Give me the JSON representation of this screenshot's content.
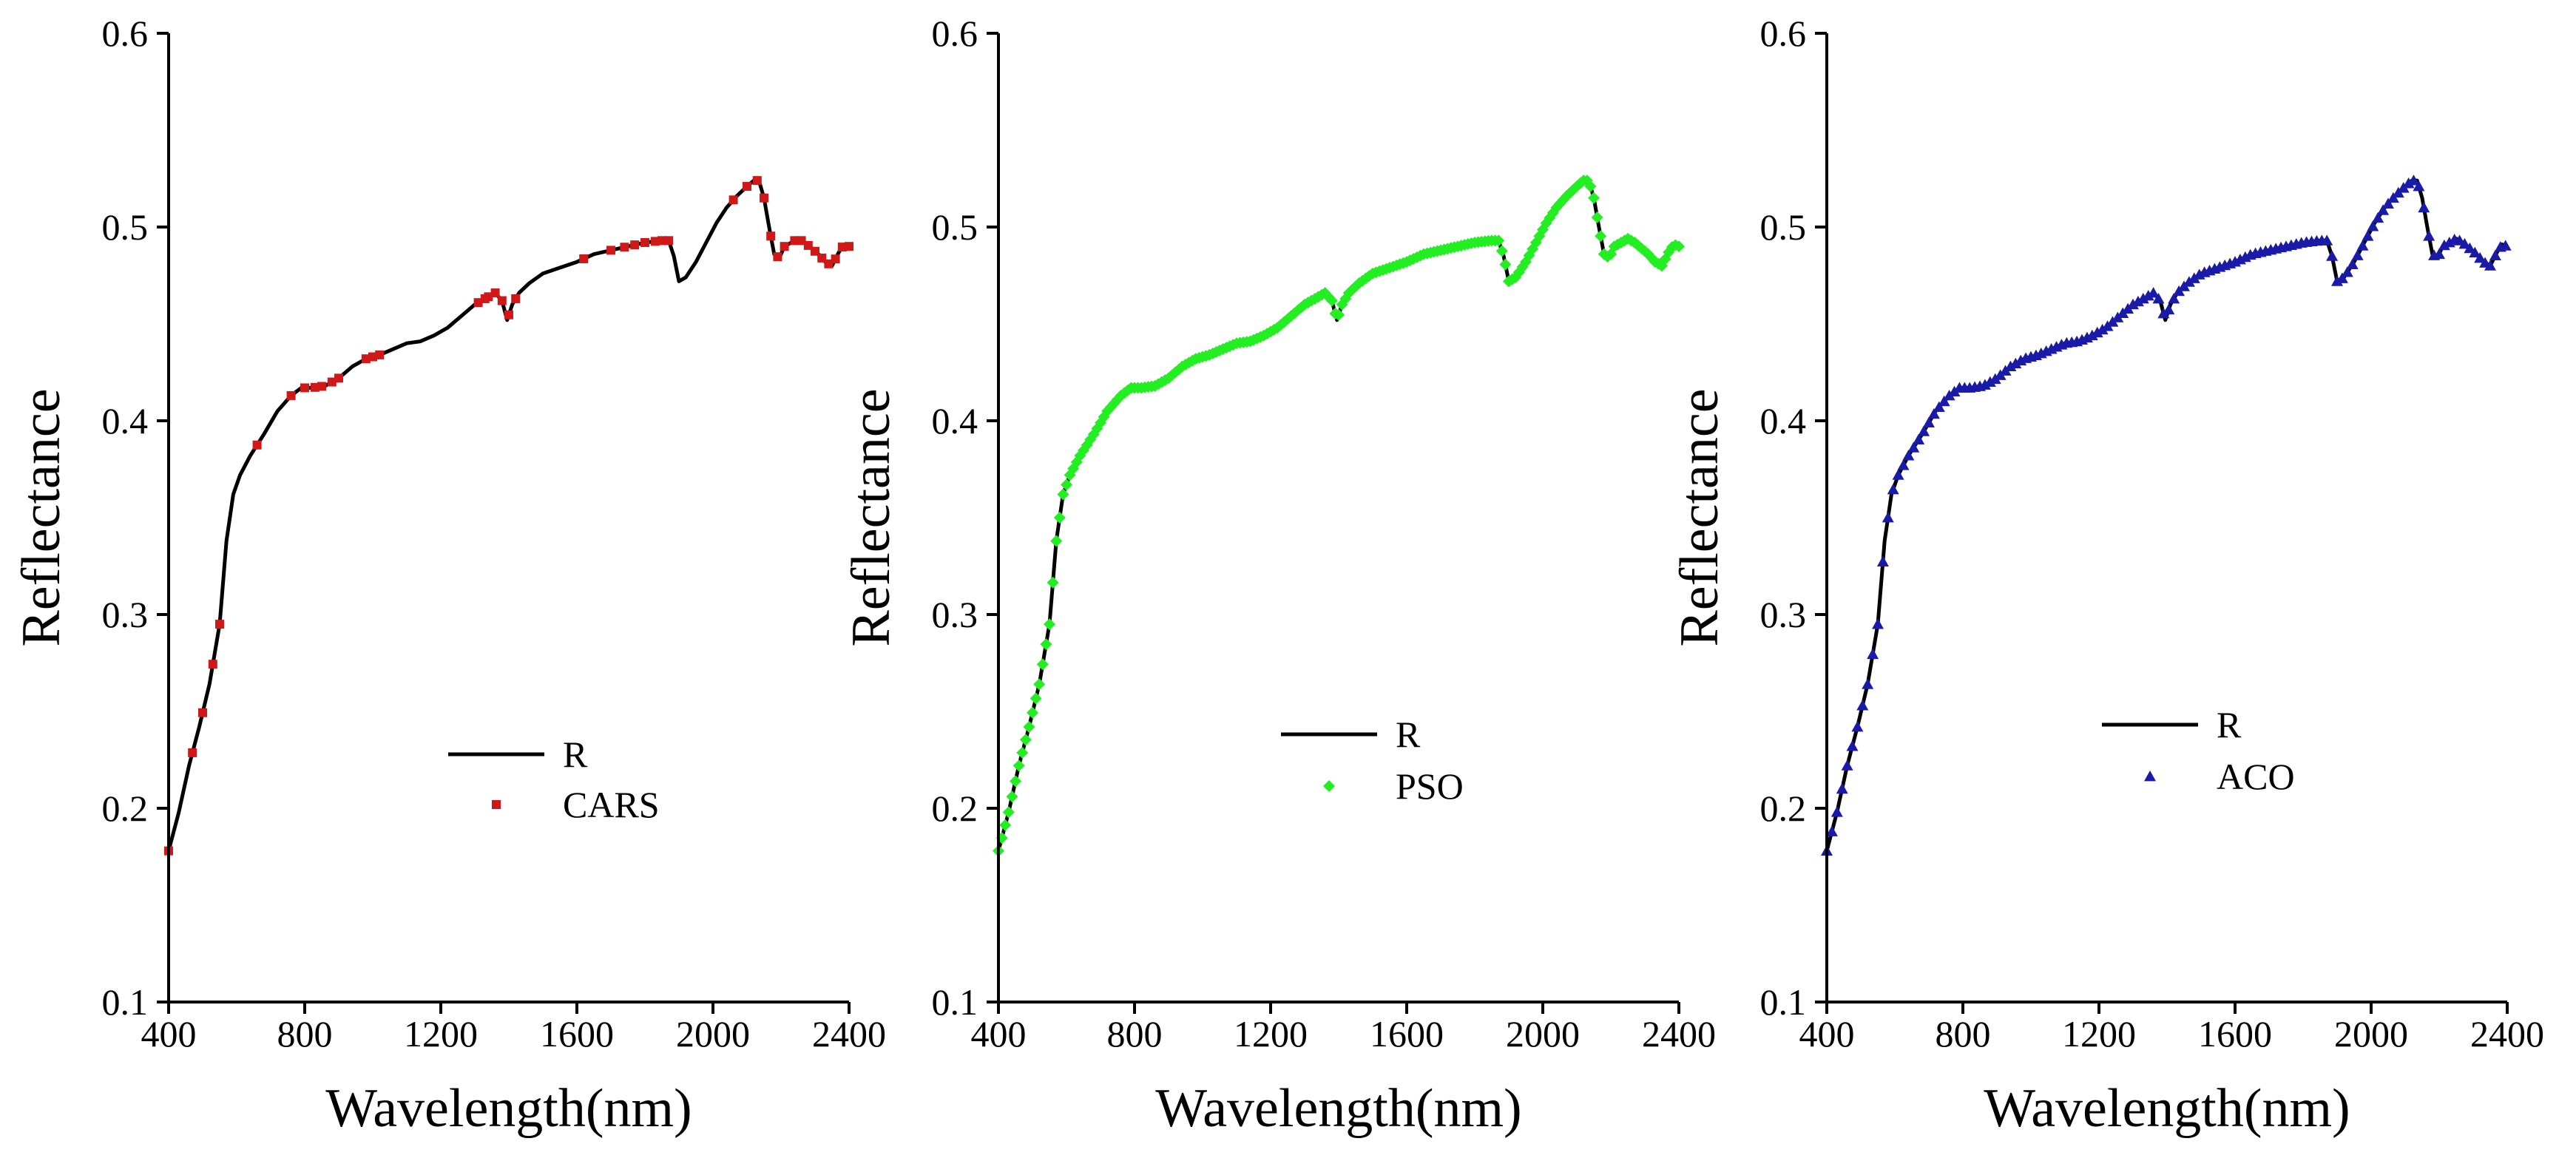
{
  "chart_data": [
    {
      "type": "line",
      "id": "cars",
      "xlabel": "Wavelength(nm)",
      "ylabel": "Reflectance",
      "xlim": [
        400,
        2400
      ],
      "ylim": [
        0.1,
        0.6
      ],
      "xticks": [
        400,
        800,
        1200,
        1600,
        2000,
        2400
      ],
      "yticks": [
        0.1,
        0.2,
        0.3,
        0.4,
        0.5,
        0.6
      ],
      "xtick_labels": [
        "400",
        "800",
        "1200",
        "1600",
        "2000",
        "2400"
      ],
      "ytick_labels": [
        "0.1",
        "0.2",
        "0.3",
        "0.4",
        "0.5",
        "0.6"
      ],
      "legend": {
        "placement": "center-lower",
        "line_label": "R",
        "marker_label": "CARS"
      },
      "series": [
        {
          "name": "R",
          "kind": "line",
          "color": "#000000"
        },
        {
          "name": "CARS",
          "kind": "scatter",
          "marker": "square",
          "color": "#d01818",
          "x": [
            400,
            470,
            500,
            530,
            550,
            660,
            760,
            800,
            830,
            850,
            880,
            900,
            980,
            1000,
            1020,
            1310,
            1330,
            1340,
            1360,
            1380,
            1400,
            1420,
            1620,
            1700,
            1740,
            1770,
            1800,
            1830,
            1850,
            1870,
            2060,
            2100,
            2130,
            2150,
            2170,
            2190,
            2210,
            2240,
            2260,
            2280,
            2300,
            2320,
            2340,
            2360,
            2380,
            2400
          ]
        }
      ]
    },
    {
      "type": "line",
      "id": "pso",
      "xlabel": "Wavelength(nm)",
      "ylabel": "Reflectance",
      "xlim": [
        400,
        2400
      ],
      "ylim": [
        0.1,
        0.6
      ],
      "xticks": [
        400,
        800,
        1200,
        1600,
        2000,
        2400
      ],
      "yticks": [
        0.1,
        0.2,
        0.3,
        0.4,
        0.5,
        0.6
      ],
      "xtick_labels": [
        "400",
        "800",
        "1200",
        "1600",
        "2000",
        "2400"
      ],
      "ytick_labels": [
        "0.1",
        "0.2",
        "0.3",
        "0.4",
        "0.5",
        "0.6"
      ],
      "legend": {
        "placement": "center-lower",
        "line_label": "R",
        "marker_label": "PSO"
      },
      "series": [
        {
          "name": "R",
          "kind": "line",
          "color": "#000000"
        },
        {
          "name": "PSO",
          "kind": "scatter",
          "marker": "diamond",
          "color": "#22ee22",
          "x_range": [
            400,
            2400
          ],
          "x_step": 10
        }
      ]
    },
    {
      "type": "line",
      "id": "aco",
      "xlabel": "Wavelength(nm)",
      "ylabel": "Reflectance",
      "xlim": [
        400,
        2400
      ],
      "ylim": [
        0.1,
        0.6
      ],
      "xticks": [
        400,
        800,
        1200,
        1600,
        2000,
        2400
      ],
      "yticks": [
        0.1,
        0.2,
        0.3,
        0.4,
        0.5,
        0.6
      ],
      "xtick_labels": [
        "400",
        "800",
        "1200",
        "1600",
        "2000",
        "2400"
      ],
      "ytick_labels": [
        "0.1",
        "0.2",
        "0.3",
        "0.4",
        "0.5",
        "0.6"
      ],
      "legend": {
        "placement": "center-lower",
        "line_label": "R",
        "marker_label": "ACO"
      },
      "series": [
        {
          "name": "R",
          "kind": "line",
          "color": "#000000"
        },
        {
          "name": "ACO",
          "kind": "scatter",
          "marker": "triangle",
          "color": "#1a1aa8",
          "x_range": [
            400,
            2400
          ],
          "x_step": 15
        }
      ]
    }
  ],
  "reflectance_curve": {
    "x": [
      400,
      430,
      460,
      490,
      520,
      550,
      570,
      590,
      610,
      640,
      680,
      720,
      760,
      790,
      820,
      860,
      900,
      940,
      980,
      1020,
      1060,
      1100,
      1140,
      1180,
      1220,
      1260,
      1300,
      1330,
      1360,
      1380,
      1395,
      1410,
      1430,
      1460,
      1500,
      1550,
      1600,
      1650,
      1700,
      1750,
      1800,
      1850,
      1870,
      1885,
      1900,
      1920,
      1950,
      1980,
      2010,
      2040,
      2070,
      2100,
      2120,
      2135,
      2150,
      2165,
      2180,
      2195,
      2210,
      2230,
      2250,
      2270,
      2290,
      2310,
      2330,
      2350,
      2370,
      2385,
      2400
    ],
    "y": [
      0.178,
      0.198,
      0.222,
      0.242,
      0.264,
      0.295,
      0.338,
      0.362,
      0.372,
      0.382,
      0.393,
      0.405,
      0.413,
      0.417,
      0.417,
      0.418,
      0.422,
      0.428,
      0.432,
      0.434,
      0.437,
      0.44,
      0.441,
      0.444,
      0.448,
      0.454,
      0.46,
      0.463,
      0.466,
      0.462,
      0.452,
      0.46,
      0.466,
      0.471,
      0.476,
      0.479,
      0.482,
      0.486,
      0.488,
      0.49,
      0.492,
      0.493,
      0.493,
      0.485,
      0.472,
      0.474,
      0.482,
      0.492,
      0.502,
      0.51,
      0.516,
      0.521,
      0.524,
      0.524,
      0.515,
      0.5,
      0.486,
      0.484,
      0.49,
      0.492,
      0.494,
      0.492,
      0.489,
      0.486,
      0.482,
      0.48,
      0.487,
      0.491,
      0.49
    ]
  }
}
